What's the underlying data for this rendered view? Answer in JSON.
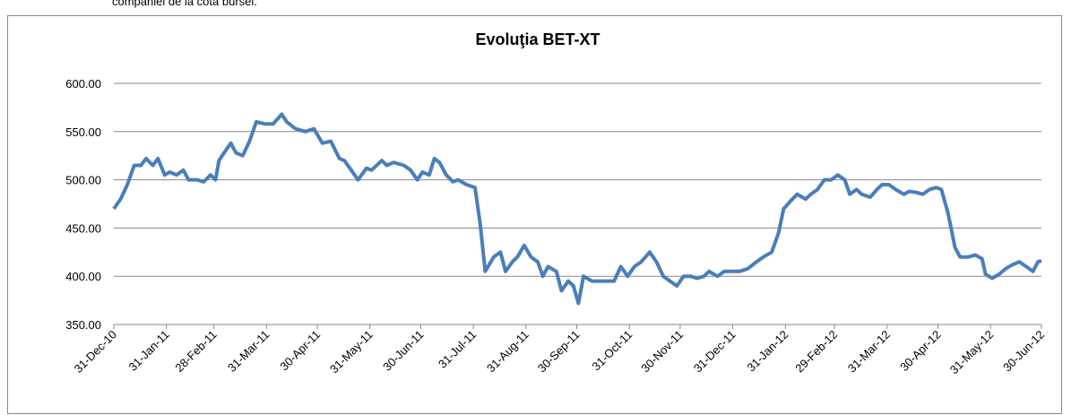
{
  "text_above": "companiei de la cota bursei.",
  "chart_data": {
    "type": "line",
    "title": "Evoluţia BET-XT",
    "color": "#4a7ebb",
    "grid": true,
    "x": [
      "2010-12-31",
      "2011-01-04",
      "2011-01-08",
      "2011-01-12",
      "2011-01-16",
      "2011-01-19",
      "2011-01-23",
      "2011-01-26",
      "2011-01-30",
      "2011-02-02",
      "2011-02-06",
      "2011-02-10",
      "2011-02-13",
      "2011-02-18",
      "2011-02-22",
      "2011-02-26",
      "2011-03-01",
      "2011-03-03",
      "2011-03-06",
      "2011-03-10",
      "2011-03-13",
      "2011-03-17",
      "2011-03-21",
      "2011-03-25",
      "2011-03-30",
      "2011-04-04",
      "2011-04-09",
      "2011-04-12",
      "2011-04-17",
      "2011-04-23",
      "2011-04-28",
      "2011-05-03",
      "2011-05-08",
      "2011-05-13",
      "2011-05-16",
      "2011-05-20",
      "2011-05-24",
      "2011-05-29",
      "2011-06-01",
      "2011-06-07",
      "2011-06-10",
      "2011-06-14",
      "2011-06-20",
      "2011-06-24",
      "2011-06-28",
      "2011-07-01",
      "2011-07-05",
      "2011-07-08",
      "2011-07-11",
      "2011-07-15",
      "2011-07-19",
      "2011-07-22",
      "2011-07-27",
      "2011-08-01",
      "2011-08-04",
      "2011-08-07",
      "2011-08-12",
      "2011-08-16",
      "2011-08-19",
      "2011-08-23",
      "2011-08-26",
      "2011-08-30",
      "2011-09-03",
      "2011-09-07",
      "2011-09-10",
      "2011-09-13",
      "2011-09-18",
      "2011-09-21",
      "2011-09-25",
      "2011-09-28",
      "2011-10-01",
      "2011-10-04",
      "2011-10-09",
      "2011-10-13",
      "2011-10-17",
      "2011-10-22",
      "2011-10-26",
      "2011-10-30",
      "2011-11-03",
      "2011-11-07",
      "2011-11-12",
      "2011-11-16",
      "2011-11-20",
      "2011-11-24",
      "2011-11-28",
      "2011-12-02",
      "2011-12-06",
      "2011-12-10",
      "2011-12-14",
      "2011-12-17",
      "2011-12-22",
      "2011-12-26",
      "2011-12-30",
      "2012-01-04",
      "2012-01-09",
      "2012-01-14",
      "2012-01-18",
      "2012-01-23",
      "2012-01-27",
      "2012-01-30",
      "2012-02-03",
      "2012-02-07",
      "2012-02-12",
      "2012-02-15",
      "2012-02-19",
      "2012-02-23",
      "2012-02-27",
      "2012-03-02",
      "2012-03-06",
      "2012-03-09",
      "2012-03-13",
      "2012-03-16",
      "2012-03-21",
      "2012-03-25",
      "2012-03-28",
      "2012-04-01",
      "2012-04-05",
      "2012-04-10",
      "2012-04-13",
      "2012-04-17",
      "2012-04-21",
      "2012-04-25",
      "2012-04-29",
      "2012-05-02",
      "2012-05-06",
      "2012-05-10",
      "2012-05-13",
      "2012-05-18",
      "2012-05-22",
      "2012-05-26",
      "2012-05-28",
      "2012-06-01",
      "2012-06-05",
      "2012-06-09",
      "2012-06-13",
      "2012-06-17",
      "2012-06-21",
      "2012-06-25",
      "2012-06-28",
      "2012-06-30"
    ],
    "values": [
      470,
      480,
      495,
      515,
      515,
      522,
      515,
      522,
      505,
      508,
      505,
      510,
      500,
      500,
      498,
      505,
      500,
      520,
      528,
      538,
      528,
      525,
      540,
      560,
      558,
      558,
      568,
      560,
      553,
      550,
      553,
      538,
      540,
      522,
      520,
      510,
      500,
      512,
      510,
      520,
      515,
      518,
      515,
      510,
      500,
      508,
      505,
      522,
      518,
      505,
      498,
      500,
      495,
      492,
      455,
      405,
      420,
      425,
      405,
      415,
      420,
      432,
      420,
      415,
      400,
      410,
      405,
      385,
      395,
      390,
      372,
      400,
      395,
      395,
      395,
      395,
      410,
      400,
      410,
      415,
      425,
      415,
      400,
      395,
      390,
      400,
      400,
      398,
      400,
      405,
      400,
      405,
      405,
      405,
      408,
      415,
      420,
      425,
      445,
      470,
      478,
      485,
      480,
      485,
      490,
      500,
      500,
      505,
      500,
      485,
      490,
      485,
      482,
      490,
      495,
      495,
      490,
      485,
      488,
      487,
      485,
      490,
      492,
      490,
      465,
      430,
      420,
      420,
      422,
      418,
      402,
      398,
      402,
      408,
      412,
      415,
      410,
      405,
      415,
      416
    ],
    "xlim": [
      "2010-12-31",
      "2012-06-30"
    ],
    "xticks": [
      {
        "value": "2010-12-31",
        "label": "31-Dec-10"
      },
      {
        "value": "2011-01-31",
        "label": "31-Jan-11"
      },
      {
        "value": "2011-02-28",
        "label": "28-Feb-11"
      },
      {
        "value": "2011-03-31",
        "label": "31-Mar-11"
      },
      {
        "value": "2011-04-30",
        "label": "30-Apr-11"
      },
      {
        "value": "2011-05-31",
        "label": "31-May-11"
      },
      {
        "value": "2011-06-30",
        "label": "30-Jun-11"
      },
      {
        "value": "2011-07-31",
        "label": "31-Jul-11"
      },
      {
        "value": "2011-08-31",
        "label": "31-Aug-11"
      },
      {
        "value": "2011-09-30",
        "label": "30-Sep-11"
      },
      {
        "value": "2011-10-31",
        "label": "31-Oct-11"
      },
      {
        "value": "2011-11-30",
        "label": "30-Nov-11"
      },
      {
        "value": "2011-12-31",
        "label": "31-Dec-11"
      },
      {
        "value": "2012-01-31",
        "label": "31-Jan-12"
      },
      {
        "value": "2012-02-29",
        "label": "29-Feb-12"
      },
      {
        "value": "2012-03-31",
        "label": "31-Mar-12"
      },
      {
        "value": "2012-04-30",
        "label": "30-Apr-12"
      },
      {
        "value": "2012-05-31",
        "label": "31-May-12"
      },
      {
        "value": "2012-06-30",
        "label": "30-Jun-12"
      }
    ],
    "ylim": [
      350,
      600
    ],
    "yticks": [
      {
        "value": 350,
        "label": "350.00"
      },
      {
        "value": 400,
        "label": "400.00"
      },
      {
        "value": 450,
        "label": "450.00"
      },
      {
        "value": 500,
        "label": "500.00"
      },
      {
        "value": 550,
        "label": "550.00"
      },
      {
        "value": 600,
        "label": "600.00"
      }
    ]
  }
}
